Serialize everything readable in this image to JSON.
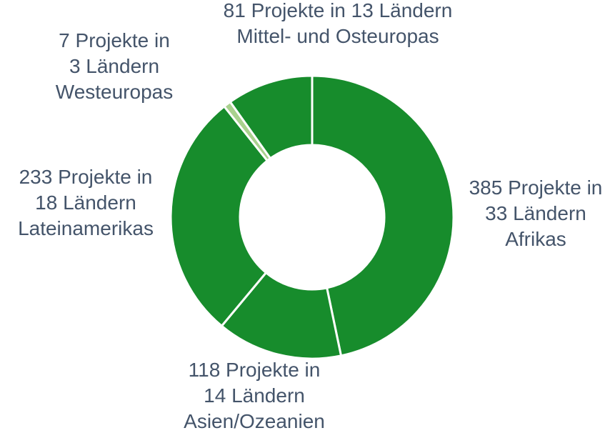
{
  "chart_data": {
    "type": "donut",
    "categories": [
      "Afrikas",
      "Asien/Ozeanien",
      "Lateinamerikas",
      "Westeuropas",
      "Mittel- und Osteuropas"
    ],
    "values": [
      385,
      118,
      233,
      7,
      81
    ],
    "value_labels": [
      [
        "385 Projekte in",
        "33 Ländern",
        "Afrikas"
      ],
      [
        "118 Projekte in",
        "14 Ländern",
        "Asien/Ozeanien"
      ],
      [
        "233 Projekte in",
        "18 Ländern",
        "Lateinamerikas"
      ],
      [
        "7 Projekte in",
        "3 Ländern",
        "Westeuropas"
      ],
      [
        "81 Projekte in 13 Ländern",
        "Mittel- und Osteuropas"
      ]
    ],
    "colors": [
      "#178c2c",
      "#178c2c",
      "#178c2c",
      "#a9d18e",
      "#178c2c"
    ]
  }
}
